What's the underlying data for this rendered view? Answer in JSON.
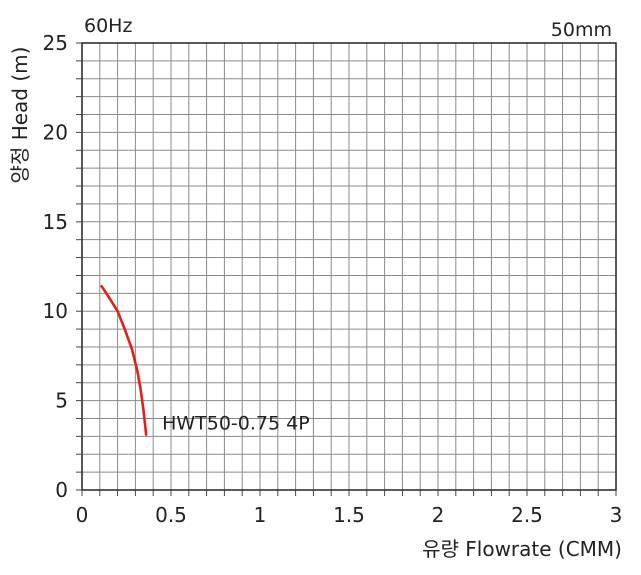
{
  "chart_data": {
    "type": "line",
    "freq_label": "60Hz",
    "size_label": "50mm",
    "ylabel": "양정 Head (m)",
    "xlabel": "유량 Flowrate (CMM)",
    "xlim": [
      0,
      3
    ],
    "ylim": [
      0,
      25
    ],
    "x_ticks": [
      "0",
      "0.5",
      "1",
      "1.5",
      "2",
      "2.5",
      "3"
    ],
    "y_ticks": [
      "0",
      "5",
      "10",
      "15",
      "20",
      "25"
    ],
    "grid": true,
    "series": [
      {
        "name": "HWT50-0.75 4P",
        "color": "#e0201c",
        "x": [
          0.11,
          0.15,
          0.2,
          0.24,
          0.28,
          0.31,
          0.33,
          0.345,
          0.355,
          0.36
        ],
        "y": [
          11.4,
          10.8,
          10.0,
          9.0,
          7.9,
          6.7,
          5.6,
          4.5,
          3.6,
          3.1
        ]
      }
    ]
  }
}
